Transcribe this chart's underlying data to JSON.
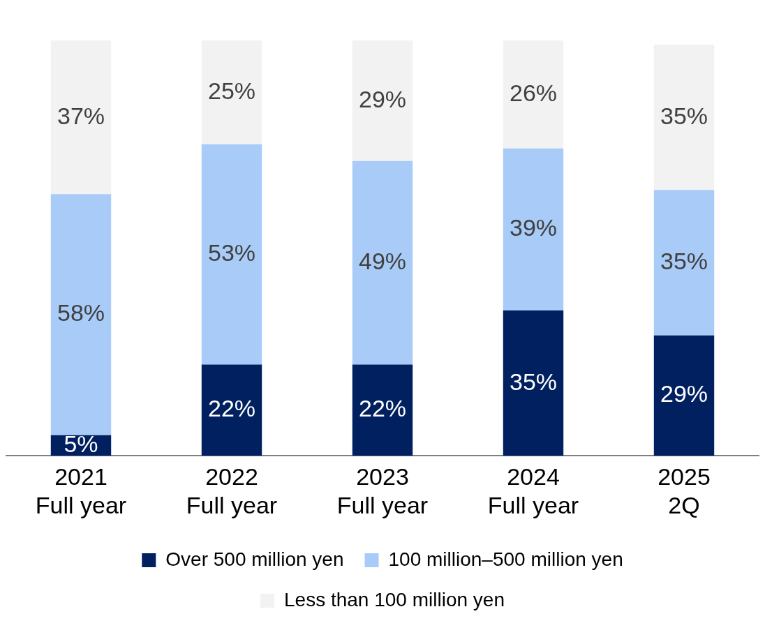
{
  "chart_data": {
    "type": "bar",
    "stacked": true,
    "categories": [
      "2021\nFull year",
      "2022\nFull year",
      "2023\nFull year",
      "2024\nFull year",
      "2025\n2Q"
    ],
    "series": [
      {
        "name": "Over 500 million yen",
        "color": "#002060",
        "values": [
          5,
          22,
          22,
          35,
          29
        ],
        "value_labels": [
          "5%",
          "22%",
          "22%",
          "35%",
          "29%"
        ]
      },
      {
        "name": "100 million–500 million yen",
        "color": "#a9cbf7",
        "values": [
          58,
          53,
          49,
          39,
          35
        ],
        "value_labels": [
          "58%",
          "53%",
          "49%",
          "39%",
          "35%"
        ]
      },
      {
        "name": "Less than 100 million yen",
        "color": "#f2f2f2",
        "values": [
          37,
          25,
          29,
          26,
          35
        ],
        "value_labels": [
          "37%",
          "25%",
          "29%",
          "26%",
          "35%"
        ]
      }
    ],
    "ylim": [
      0,
      100
    ],
    "tick_labels": "x",
    "grid": false,
    "legend": "bottom"
  }
}
